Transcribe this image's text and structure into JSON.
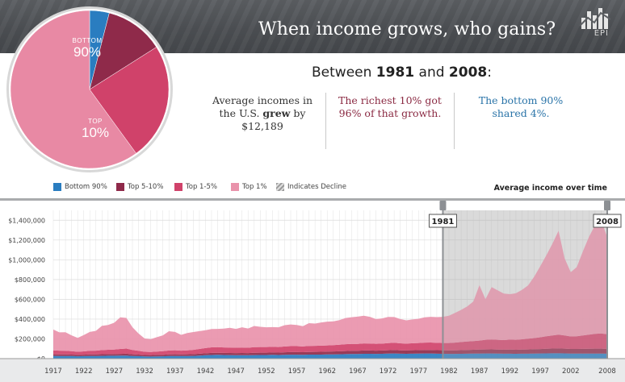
{
  "header": {
    "title": "When income grows, who gains?",
    "logo_text": "EPI"
  },
  "pie": {
    "slices": [
      {
        "label": "BOTTOM 90%",
        "share": 4,
        "color": "#2a7dc0"
      },
      {
        "label": "TOP 5-10%",
        "share": 12,
        "color": "#8f2a4a"
      },
      {
        "label": "TOP 1-5%",
        "share": 24,
        "color": "#d0426a"
      },
      {
        "label": "TOP 1%",
        "share": 60,
        "color": "#e889a4"
      }
    ],
    "label_bottom_small": "BOTTOM",
    "label_bottom_big": "90%",
    "label_top_small": "TOP",
    "label_top_big": "10%"
  },
  "summary": {
    "between_prefix": "Between ",
    "year_start": "1981",
    "between_and": " and ",
    "year_end": "2008",
    "between_suffix": ":",
    "col1_line1": "Average incomes in",
    "col1_line2a": "the U.S. ",
    "col1_line2b": "grew",
    "col1_line2c": " by",
    "col1_line3": "$12,189",
    "col2_line1": "The richest 10% got",
    "col2_line2": "96% of that growth.",
    "col3_line1": "The bottom 90%",
    "col3_line2": "shared 4%."
  },
  "legend": [
    {
      "label": "Bottom 90%",
      "color": "#2a7dc0"
    },
    {
      "label": "Top 5-10%",
      "color": "#8f2a4a"
    },
    {
      "label": "Top 1-5%",
      "color": "#d0426a"
    },
    {
      "label": "Top 1%",
      "color": "#e993ab"
    },
    {
      "label": "Indicates Decline",
      "color": "#b0b0b0"
    }
  ],
  "chart_heading": "Average income over time",
  "chart_data": {
    "type": "area",
    "stacked": true,
    "x": [
      1917,
      1918,
      1919,
      1920,
      1921,
      1922,
      1923,
      1924,
      1925,
      1926,
      1927,
      1928,
      1929,
      1930,
      1931,
      1932,
      1933,
      1934,
      1935,
      1936,
      1937,
      1938,
      1939,
      1940,
      1941,
      1942,
      1943,
      1944,
      1945,
      1946,
      1947,
      1948,
      1949,
      1950,
      1951,
      1952,
      1953,
      1954,
      1955,
      1956,
      1957,
      1958,
      1959,
      1960,
      1961,
      1962,
      1963,
      1964,
      1965,
      1966,
      1967,
      1968,
      1969,
      1970,
      1971,
      1972,
      1973,
      1974,
      1975,
      1976,
      1977,
      1978,
      1979,
      1980,
      1981,
      1982,
      1983,
      1984,
      1985,
      1986,
      1987,
      1988,
      1989,
      1990,
      1991,
      1992,
      1993,
      1994,
      1995,
      1996,
      1997,
      1998,
      1999,
      2000,
      2001,
      2002,
      2003,
      2004,
      2005,
      2006,
      2007,
      2008
    ],
    "series": [
      {
        "name": "Bottom 90%",
        "color": "#2a7dc0",
        "values": [
          28000,
          27000,
          27000,
          26000,
          24000,
          25000,
          27000,
          27000,
          28000,
          29000,
          29000,
          30000,
          31000,
          27000,
          25000,
          22000,
          21000,
          23000,
          24000,
          26000,
          27000,
          26000,
          27000,
          28000,
          31000,
          34000,
          37000,
          38000,
          37000,
          36000,
          35000,
          35000,
          34000,
          36000,
          37000,
          37000,
          38000,
          37000,
          39000,
          40000,
          40000,
          39000,
          41000,
          41000,
          41000,
          42000,
          43000,
          44000,
          46000,
          47000,
          47000,
          49000,
          49000,
          48000,
          49000,
          51000,
          52000,
          50000,
          49000,
          50000,
          51000,
          52000,
          52000,
          50000,
          49000,
          48000,
          48000,
          49000,
          50000,
          51000,
          51000,
          52000,
          52000,
          51000,
          50000,
          50000,
          49000,
          50000,
          50000,
          51000,
          52000,
          53000,
          54000,
          54000,
          53000,
          51000,
          51000,
          51000,
          51000,
          51000,
          51000,
          50000
        ]
      },
      {
        "name": "Top 5-10%",
        "color": "#8f2a4a",
        "values": [
          16000,
          15500,
          15500,
          15000,
          14500,
          15000,
          15500,
          16000,
          16500,
          17000,
          17500,
          18000,
          18500,
          17000,
          16000,
          15000,
          14500,
          15000,
          15500,
          16500,
          17000,
          16500,
          17000,
          18000,
          19000,
          20000,
          21000,
          21500,
          21000,
          21000,
          21500,
          22000,
          22000,
          22500,
          23000,
          23500,
          24000,
          24000,
          25000,
          26000,
          26000,
          26000,
          27000,
          27500,
          28000,
          29000,
          29500,
          30000,
          31000,
          32000,
          32500,
          33000,
          33500,
          33000,
          33500,
          34000,
          35000,
          34000,
          34000,
          35000,
          35500,
          36000,
          36000,
          35500,
          35500,
          35500,
          36000,
          37000,
          38000,
          39000,
          40000,
          41000,
          41500,
          41000,
          40500,
          41000,
          41000,
          42000,
          43000,
          44000,
          45000,
          47000,
          48000,
          49000,
          48000,
          47000,
          47000,
          48000,
          49000,
          50000,
          50000,
          49000
        ]
      },
      {
        "name": "Top 1-5%",
        "color": "#d0426a",
        "values": [
          40000,
          38000,
          37000,
          35000,
          31000,
          33000,
          37000,
          38000,
          42000,
          44000,
          46000,
          50000,
          52000,
          44000,
          38000,
          32000,
          31000,
          34000,
          36000,
          40000,
          41000,
          38000,
          40000,
          43000,
          48000,
          53000,
          56000,
          56000,
          55000,
          55000,
          54000,
          55000,
          54000,
          57000,
          57000,
          57000,
          57000,
          56000,
          59000,
          60000,
          60000,
          58000,
          61000,
          61000,
          62000,
          63000,
          64000,
          66000,
          69000,
          70000,
          70000,
          72000,
          71000,
          69000,
          69000,
          72000,
          74000,
          71000,
          69000,
          71000,
          72000,
          74000,
          75000,
          74000,
          74000,
          75000,
          78000,
          82000,
          85000,
          88000,
          92000,
          98000,
          100000,
          99000,
          97000,
          101000,
          101000,
          104000,
          108000,
          113000,
          119000,
          126000,
          132000,
          140000,
          134000,
          126000,
          128000,
          135000,
          142000,
          149000,
          153000,
          148000
        ]
      },
      {
        "name": "Top 1%",
        "color": "#e993ab",
        "values": [
          210000,
          185000,
          188000,
          160000,
          140000,
          165000,
          190000,
          200000,
          245000,
          250000,
          270000,
          320000,
          310000,
          230000,
          175000,
          135000,
          130000,
          145000,
          160000,
          195000,
          185000,
          160000,
          175000,
          180000,
          180000,
          180000,
          185000,
          185000,
          190000,
          200000,
          190000,
          205000,
          195000,
          215000,
          205000,
          200000,
          200000,
          200000,
          215000,
          220000,
          215000,
          205000,
          230000,
          225000,
          235000,
          240000,
          240000,
          250000,
          265000,
          270000,
          275000,
          280000,
          270000,
          250000,
          255000,
          265000,
          260000,
          245000,
          235000,
          240000,
          245000,
          255000,
          260000,
          260000,
          265000,
          275000,
          300000,
          325000,
          355000,
          400000,
          560000,
          410000,
          530000,
          500000,
          470000,
          460000,
          470000,
          500000,
          540000,
          620000,
          720000,
          820000,
          930000,
          1050000,
          780000,
          650000,
          700000,
          850000,
          990000,
          1100000,
          1150000,
          980000
        ]
      }
    ],
    "ylim": [
      0,
      1500000
    ],
    "yticks": [
      0,
      200000,
      400000,
      600000,
      800000,
      1000000,
      1200000,
      1400000
    ],
    "ytick_labels": [
      "$0",
      "$200,000",
      "$400,000",
      "$600,000",
      "$800,000",
      "$1,000,000",
      "$1,200,000",
      "$1,400,000"
    ],
    "xticks": [
      1917,
      1922,
      1927,
      1932,
      1937,
      1942,
      1947,
      1952,
      1957,
      1962,
      1967,
      1972,
      1977,
      1982,
      1987,
      1992,
      1997,
      2002,
      2008
    ],
    "highlight": {
      "start": 1981,
      "end": 2008,
      "start_label": "1981",
      "end_label": "2008"
    },
    "grid": true
  }
}
